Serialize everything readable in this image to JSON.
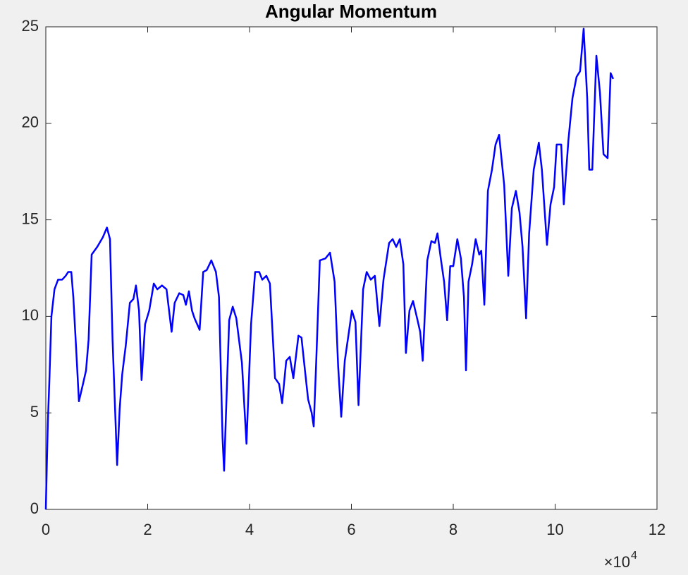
{
  "chart_data": {
    "type": "line",
    "title": "Angular Momentum",
    "x": [
      0,
      0.01,
      0.04,
      0.07,
      0.11,
      0.17,
      0.24,
      0.32,
      0.39,
      0.44,
      0.5,
      0.54,
      0.6,
      0.65,
      0.73,
      0.79,
      0.84,
      0.9,
      1.01,
      1.12,
      1.2,
      1.26,
      1.31,
      1.4,
      1.45,
      1.5,
      1.57,
      1.65,
      1.72,
      1.77,
      1.83,
      1.88,
      1.95,
      2.03,
      2.12,
      2.19,
      2.28,
      2.37,
      2.47,
      2.53,
      2.62,
      2.7,
      2.75,
      2.81,
      2.87,
      2.92,
      3.02,
      3.09,
      3.16,
      3.25,
      3.34,
      3.4,
      3.47,
      3.5,
      3.56,
      3.6,
      3.67,
      3.74,
      3.85,
      3.94,
      4.03,
      4.11,
      4.19,
      4.25,
      4.33,
      4.4,
      4.5,
      4.58,
      4.64,
      4.72,
      4.79,
      4.86,
      4.96,
      5.02,
      5.08,
      5.15,
      5.22,
      5.26,
      5.31,
      5.38,
      5.49,
      5.58,
      5.67,
      5.74,
      5.8,
      5.87,
      5.93,
      6.01,
      6.08,
      6.14,
      6.23,
      6.3,
      6.38,
      6.46,
      6.55,
      6.63,
      6.74,
      6.81,
      6.88,
      6.95,
      7.02,
      7.07,
      7.14,
      7.21,
      7.29,
      7.35,
      7.4,
      7.49,
      7.57,
      7.64,
      7.69,
      7.76,
      7.82,
      7.88,
      7.94,
      8.0,
      8.08,
      8.15,
      8.21,
      8.25,
      8.3,
      8.37,
      8.44,
      8.51,
      8.55,
      8.61,
      8.68,
      8.76,
      8.83,
      8.9,
      9.0,
      9.08,
      9.15,
      9.23,
      9.3,
      9.36,
      9.43,
      9.49,
      9.58,
      9.68,
      9.74,
      9.84,
      9.91,
      9.98,
      10.03,
      10.12,
      10.17,
      10.26,
      10.34,
      10.42,
      10.49,
      10.56,
      10.63,
      10.67,
      10.73,
      10.81,
      10.88,
      10.95,
      11.03,
      11.09,
      11.14
    ],
    "series": [
      {
        "color": "#0000ff",
        "values": [
          0,
          1.2,
          4.5,
          6.7,
          10,
          11.4,
          11.9,
          11.9,
          12.1,
          12.3,
          12.3,
          11,
          8.1,
          5.6,
          6.5,
          7.2,
          8.8,
          13.2,
          13.6,
          14.1,
          14.6,
          14,
          8.8,
          2.3,
          5.2,
          7,
          8.5,
          10.7,
          10.9,
          11.6,
          10.3,
          6.7,
          9.6,
          10.3,
          11.7,
          11.4,
          11.6,
          11.4,
          9.2,
          10.7,
          11.2,
          11.1,
          10.6,
          11.3,
          10.3,
          9.9,
          9.3,
          12.3,
          12.4,
          12.9,
          12.3,
          11,
          3.7,
          2,
          6.7,
          9.8,
          10.5,
          9.9,
          7.6,
          3.4,
          9.6,
          12.3,
          12.3,
          11.9,
          12.1,
          11.7,
          6.8,
          6.5,
          5.5,
          7.7,
          7.9,
          6.8,
          9,
          8.9,
          7.4,
          5.7,
          5,
          4.3,
          7.7,
          12.9,
          13,
          13.3,
          11.8,
          7.4,
          4.8,
          7.7,
          8.8,
          10.3,
          9.7,
          5.4,
          11.4,
          12.3,
          11.9,
          12.1,
          9.5,
          11.9,
          13.8,
          14,
          13.6,
          14,
          12.7,
          8.1,
          10.3,
          10.8,
          9.9,
          9.2,
          7.7,
          12.9,
          13.9,
          13.8,
          14.3,
          12.9,
          11.8,
          9.8,
          12.6,
          12.6,
          14,
          13,
          11,
          7.2,
          11.8,
          12.7,
          14,
          13.2,
          13.4,
          10.6,
          16.5,
          17.6,
          18.9,
          19.4,
          16.8,
          12.1,
          15.6,
          16.5,
          15.4,
          13.6,
          9.9,
          14.3,
          17.6,
          19,
          17.6,
          13.7,
          15.8,
          16.7,
          18.9,
          18.9,
          15.8,
          19.1,
          21.3,
          22.4,
          22.7,
          24.9,
          21.3,
          17.6,
          17.6,
          23.5,
          21.6,
          18.4,
          18.2,
          22.6,
          22.3
        ]
      }
    ],
    "xlim": [
      0,
      12
    ],
    "xticks": [
      0,
      2,
      4,
      6,
      8,
      10,
      12
    ],
    "ylim": [
      0,
      25
    ],
    "yticks": [
      0,
      5,
      10,
      15,
      20,
      25
    ],
    "x_multiplier": "×10",
    "x_multiplier_exponent": "4"
  }
}
